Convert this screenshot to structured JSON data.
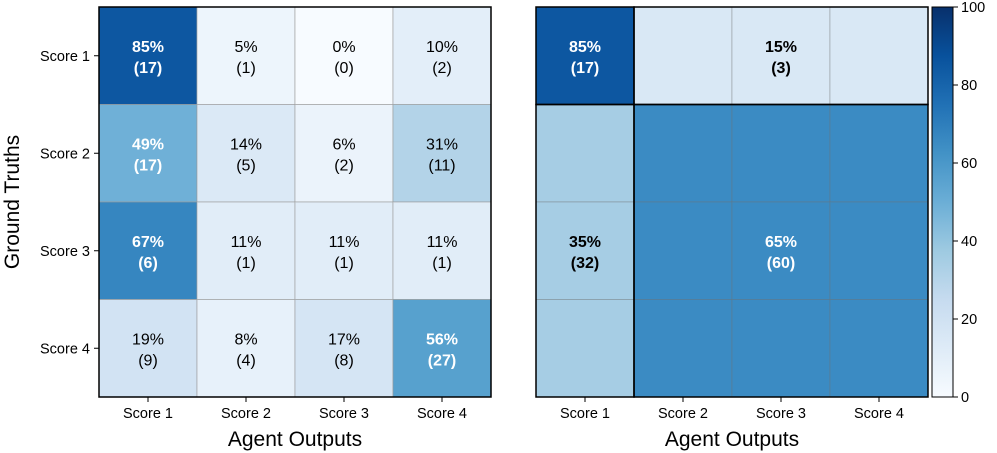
{
  "chart_data": [
    {
      "type": "heatmap",
      "xlabel": "Agent Outputs",
      "ylabel": "Ground Truths",
      "x_categories": [
        "Score 1",
        "Score 2",
        "Score 3",
        "Score 4"
      ],
      "y_categories": [
        "Score 1",
        "Score 2",
        "Score 3",
        "Score 4"
      ],
      "values_percent": [
        [
          85,
          5,
          0,
          10
        ],
        [
          49,
          14,
          6,
          31
        ],
        [
          67,
          11,
          11,
          11
        ],
        [
          19,
          8,
          17,
          56
        ]
      ],
      "counts": [
        [
          17,
          1,
          0,
          2
        ],
        [
          17,
          5,
          2,
          11
        ],
        [
          6,
          1,
          1,
          1
        ],
        [
          9,
          4,
          8,
          27
        ]
      ],
      "labels": [
        [
          "85%\n(17)",
          "5%\n(1)",
          "0%\n(0)",
          "10%\n(2)"
        ],
        [
          "49%\n(17)",
          "14%\n(5)",
          "6%\n(2)",
          "31%\n(11)"
        ],
        [
          "67%\n(6)",
          "11%\n(1)",
          "11%\n(1)",
          "11%\n(1)"
        ],
        [
          "19%\n(9)",
          "8%\n(4)",
          "17%\n(8)",
          "56%\n(27)"
        ]
      ],
      "white_text_cells": [
        [
          0,
          0
        ],
        [
          1,
          0
        ],
        [
          2,
          0
        ],
        [
          3,
          3
        ]
      ]
    },
    {
      "type": "heatmap",
      "xlabel": "Agent Outputs",
      "x_categories": [
        "Score 1",
        "Score 2",
        "Score 3",
        "Score 4"
      ],
      "blocks": [
        {
          "rows": [
            0,
            0
          ],
          "cols": [
            0,
            0
          ],
          "value": 85,
          "label": "85%\n(17)",
          "count": 17
        },
        {
          "rows": [
            0,
            0
          ],
          "cols": [
            1,
            3
          ],
          "value": 15,
          "label": "15%\n(3)",
          "count": 3
        },
        {
          "rows": [
            1,
            3
          ],
          "cols": [
            0,
            0
          ],
          "value": 35,
          "label": "35%\n(32)",
          "count": 32
        },
        {
          "rows": [
            1,
            3
          ],
          "cols": [
            1,
            3
          ],
          "value": 65,
          "label": "65%\n(60)",
          "count": 60
        }
      ],
      "colorbar": {
        "min": 0,
        "max": 100,
        "ticks": [
          "0",
          "20",
          "40",
          "60",
          "80",
          "100"
        ]
      }
    }
  ]
}
